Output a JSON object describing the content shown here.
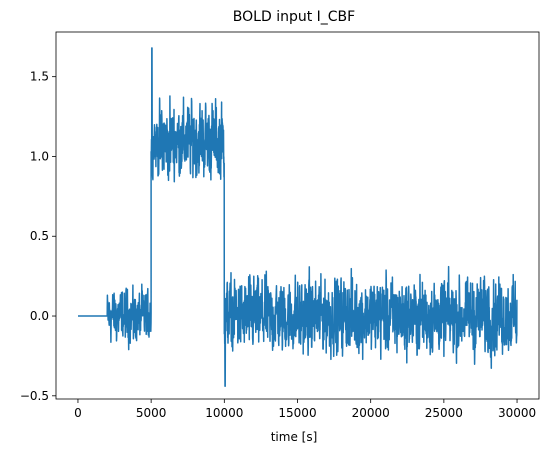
{
  "chart_data": {
    "type": "line",
    "title": "BOLD input I_CBF",
    "xlabel": "time [s]",
    "ylabel": "",
    "xlim": [
      -1500,
      31500
    ],
    "ylim": [
      -0.52,
      1.78
    ],
    "x_ticks": [
      0,
      5000,
      10000,
      15000,
      20000,
      25000,
      30000
    ],
    "y_ticks": [
      -0.5,
      0.0,
      0.5,
      1.0,
      1.5
    ],
    "y_tick_labels": [
      "−0.5",
      "0.0",
      "0.5",
      "1.0",
      "1.5"
    ],
    "grid": false,
    "legend": "none",
    "series": [
      {
        "color": "#1f77b4",
        "segments": [
          {
            "x_start": 0,
            "x_end": 2000,
            "baseline": 0.0,
            "noise_range": [
              0.0,
              0.0
            ],
            "description_level": "flat"
          },
          {
            "x_start": 2000,
            "x_end": 5000,
            "baseline": 0.0,
            "noise_range": [
              -0.26,
              0.2
            ]
          },
          {
            "x_start": 5000,
            "x_end": 10000,
            "baseline": 1.1,
            "noise_range": [
              0.82,
              1.48
            ],
            "peak": {
              "x": 5050,
              "y": 1.68
            }
          },
          {
            "x_start": 10000,
            "x_end": 30000,
            "baseline": 0.0,
            "noise_range": [
              -0.33,
              0.32
            ],
            "trough": {
              "x": 10050,
              "y": -0.44
            }
          }
        ]
      }
    ]
  }
}
